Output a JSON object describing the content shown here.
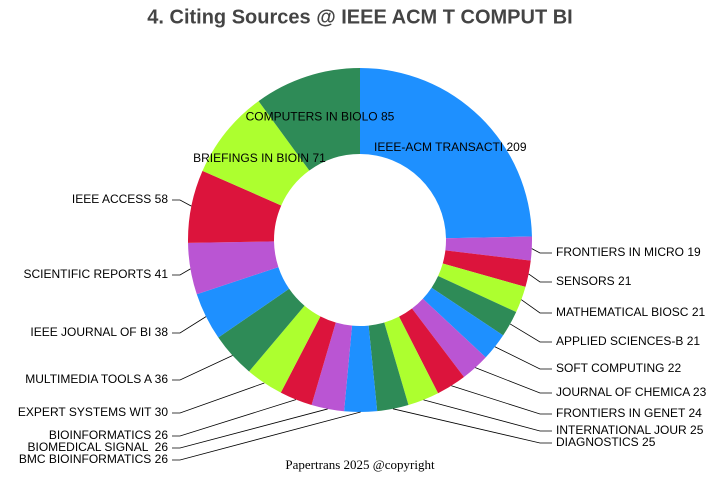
{
  "chart_data": {
    "type": "pie",
    "donut": true,
    "title": "4. Citing Sources @ IEEE ACM T COMPUT BI",
    "footer": "Papertrans 2025 @copyright",
    "categories": [
      "IEEE-ACM TRANSACTI",
      "FRONTIERS IN MICRO",
      "SENSORS",
      "MATHEMATICAL BIOSC",
      "APPLIED SCIENCES-B",
      "SOFT COMPUTING",
      "JOURNAL OF CHEMICA",
      "FRONTIERS IN GENET",
      "INTERNATIONAL JOUR",
      "DIAGNOSTICS",
      "BMC BIOINFORMATICS",
      "BIOMEDICAL SIGNAL ",
      "BIOINFORMATICS",
      "EXPERT SYSTEMS WIT",
      "MULTIMEDIA TOOLS A",
      "IEEE JOURNAL OF BI",
      "SCIENTIFIC REPORTS",
      "IEEE ACCESS",
      "BRIEFINGS IN BIOIN",
      "COMPUTERS IN BIOLO"
    ],
    "values": [
      209,
      19,
      21,
      21,
      21,
      22,
      23,
      24,
      25,
      25,
      26,
      26,
      26,
      30,
      36,
      38,
      41,
      58,
      71,
      85
    ],
    "colors": [
      "#1e90ff",
      "#ba55d3",
      "#dc143c",
      "#adff2f",
      "#2e8b57",
      "#1e90ff",
      "#ba55d3",
      "#dc143c",
      "#adff2f",
      "#2e8b57",
      "#1e90ff",
      "#ba55d3",
      "#dc143c",
      "#adff2f",
      "#2e8b57",
      "#1e90ff",
      "#ba55d3",
      "#dc143c",
      "#adff2f",
      "#2e8b57"
    ]
  }
}
